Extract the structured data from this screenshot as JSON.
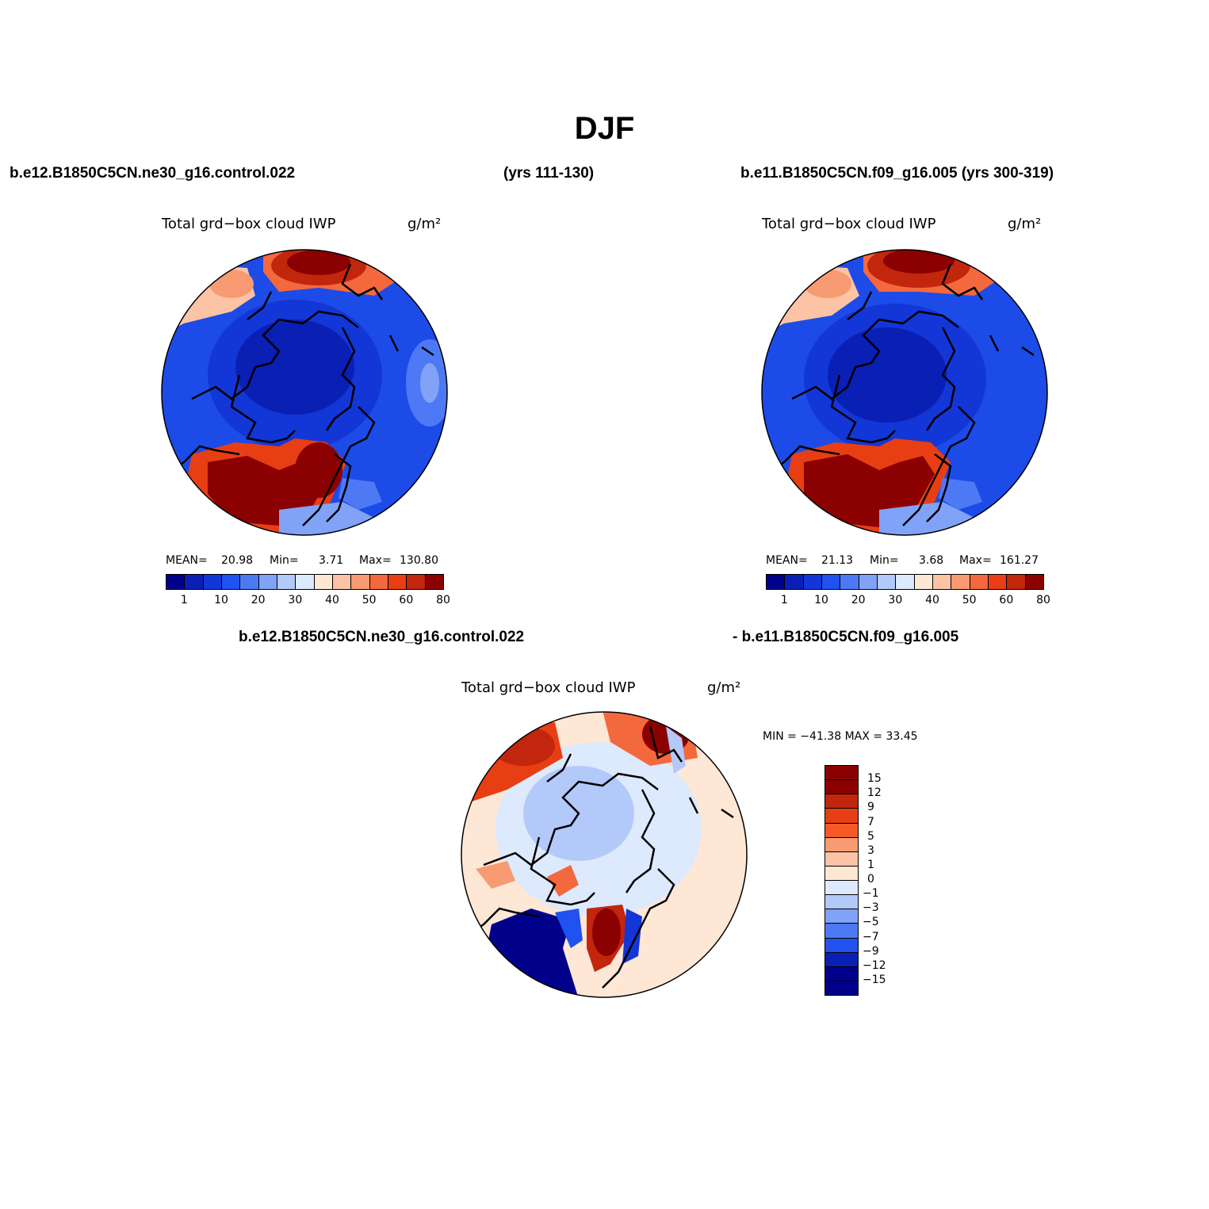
{
  "figure_title": "DJF",
  "header": {
    "case_left": "b.e12.B1850C5CN.ne30_g16.control.022",
    "case_left_years": "(yrs 111-130)",
    "case_right": "b.e11.B1850C5CN.f09_g16.005 (yrs 300-319)",
    "diff_left": "b.e12.B1850C5CN.ne30_g16.control.022",
    "diff_right": "- b.e11.B1850C5CN.f09_g16.005"
  },
  "panels": {
    "left": {
      "variable": "Total grd−box cloud IWP",
      "units": "g/m²",
      "mean_label": "MEAN=",
      "mean": "20.98",
      "min_label": "Min=",
      "min": "3.71",
      "max_label": "Max=",
      "max": "130.80"
    },
    "right": {
      "variable": "Total grd−box cloud IWP",
      "units": "g/m²",
      "mean_label": "MEAN=",
      "mean": "21.13",
      "min_label": "Min=",
      "min": "3.68",
      "max_label": "Max=",
      "max": "161.27"
    },
    "diff": {
      "variable": "Total grd−box cloud IWP",
      "units": "g/m²",
      "minmax": "MIN = −41.38  MAX =   33.45"
    }
  },
  "colorbar_main": {
    "colors": [
      "#00008b",
      "#0a1fb4",
      "#1336d6",
      "#2052f0",
      "#4d79f5",
      "#80a3f7",
      "#b3c9fa",
      "#dde9fd",
      "#ffe7d6",
      "#fcc3a5",
      "#f89a72",
      "#f4683d",
      "#e83e14",
      "#c2260c",
      "#8b0000"
    ],
    "labels": [
      "1",
      "10",
      "20",
      "30",
      "40",
      "50",
      "60",
      "80"
    ]
  },
  "colorbar_diff": {
    "colors": [
      "#8b0000",
      "#c2260c",
      "#e83e14",
      "#f65a24",
      "#f89a72",
      "#fcc3a5",
      "#ffe7d6",
      "#dde9fd",
      "#b3c9fa",
      "#80a3f7",
      "#4d79f5",
      "#2052f0",
      "#0a1fb4",
      "#00008b"
    ],
    "labels": [
      "15",
      "12",
      "9",
      "7",
      "5",
      "3",
      "1",
      "0",
      "−1",
      "−3",
      "−5",
      "−7",
      "−9",
      "−12",
      "−15"
    ]
  }
}
